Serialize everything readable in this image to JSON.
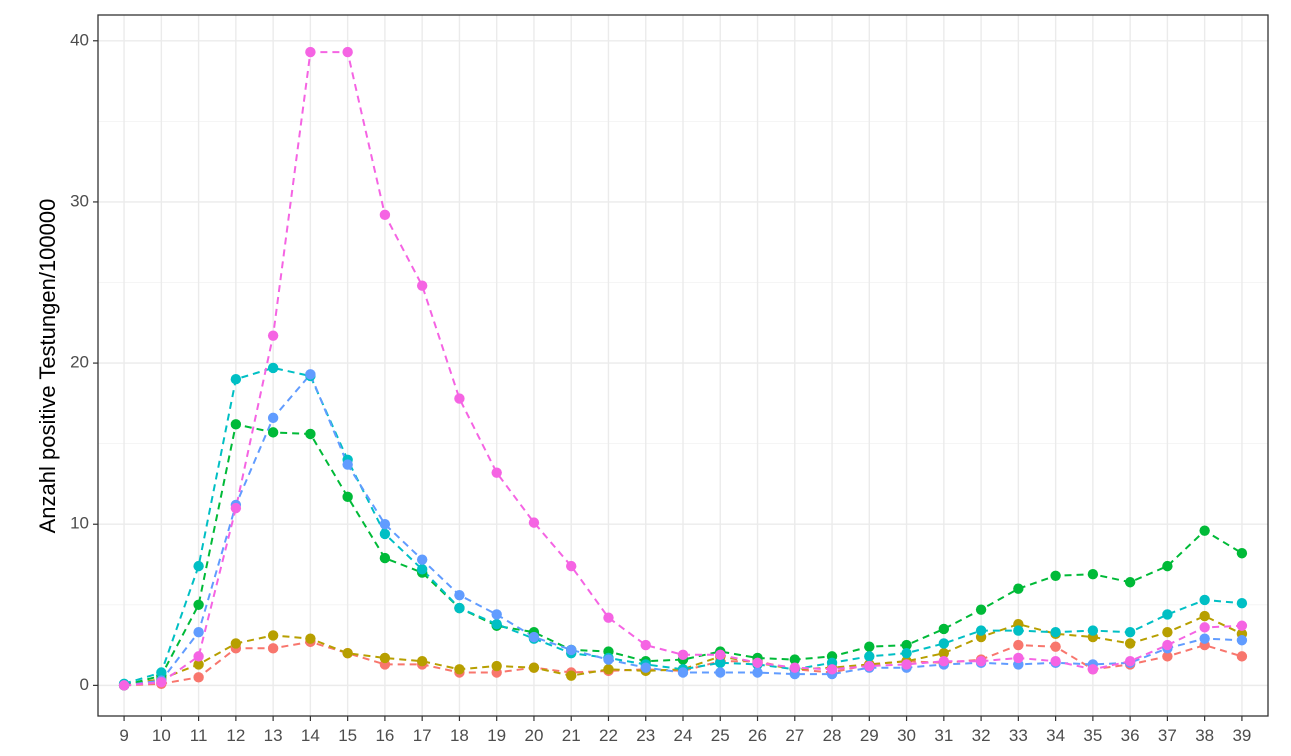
{
  "chart_data": {
    "type": "line",
    "title": "",
    "xlabel": "",
    "ylabel": "Anzahl positive Testungen/100000",
    "x": [
      9,
      10,
      11,
      12,
      13,
      14,
      15,
      16,
      17,
      18,
      19,
      20,
      21,
      22,
      23,
      24,
      25,
      26,
      27,
      28,
      29,
      30,
      31,
      32,
      33,
      34,
      35,
      36,
      37,
      38,
      39
    ],
    "xlim": [
      8.3,
      39.7
    ],
    "ylim": [
      -1.9,
      41.6
    ],
    "yticks": [
      0,
      10,
      20,
      30,
      40
    ],
    "grid": true,
    "legend": "none",
    "line_style": "dashed",
    "series": [
      {
        "color": "#F8766D",
        "values": [
          0.0,
          0.1,
          0.5,
          2.3,
          2.3,
          2.7,
          2.0,
          1.3,
          1.3,
          0.8,
          0.8,
          1.1,
          0.8,
          0.9,
          1.0,
          0.9,
          1.5,
          1.5,
          1.0,
          0.8,
          1.3,
          1.5,
          1.4,
          1.6,
          2.5,
          2.4,
          1.0,
          1.3,
          1.8,
          2.5,
          1.8
        ]
      },
      {
        "color": "#B79F00",
        "values": [
          0.0,
          0.4,
          1.3,
          2.6,
          3.1,
          2.9,
          2.0,
          1.7,
          1.5,
          1.0,
          1.2,
          1.1,
          0.6,
          1.0,
          0.9,
          1.0,
          1.8,
          1.4,
          1.0,
          1.1,
          1.3,
          1.5,
          2.0,
          3.0,
          3.8,
          3.2,
          3.0,
          2.6,
          3.3,
          4.3,
          3.2
        ]
      },
      {
        "color": "#00BA38",
        "values": [
          0.0,
          0.6,
          5.0,
          16.2,
          15.7,
          15.6,
          11.7,
          7.9,
          7.0,
          4.8,
          3.7,
          3.3,
          2.2,
          2.1,
          1.5,
          1.6,
          2.1,
          1.7,
          1.6,
          1.8,
          2.4,
          2.5,
          3.5,
          4.7,
          6.0,
          6.8,
          6.9,
          6.4,
          7.4,
          9.6,
          8.2
        ]
      },
      {
        "color": "#00BFC4",
        "values": [
          0.1,
          0.8,
          7.4,
          19.0,
          19.7,
          19.2,
          14.0,
          9.4,
          7.2,
          4.8,
          3.8,
          2.9,
          2.0,
          1.7,
          1.3,
          1.0,
          1.4,
          1.3,
          1.0,
          1.4,
          1.8,
          2.0,
          2.6,
          3.4,
          3.4,
          3.3,
          3.4,
          3.3,
          4.4,
          5.3,
          5.1
        ]
      },
      {
        "color": "#619CFF",
        "values": [
          0.0,
          0.3,
          3.3,
          11.2,
          16.6,
          19.3,
          13.7,
          10.0,
          7.8,
          5.6,
          4.4,
          3.0,
          2.2,
          1.6,
          1.1,
          0.8,
          0.8,
          0.8,
          0.7,
          0.7,
          1.1,
          1.1,
          1.3,
          1.4,
          1.3,
          1.4,
          1.3,
          1.4,
          2.3,
          2.9,
          2.8
        ]
      },
      {
        "color": "#F564E3",
        "values": [
          0.0,
          0.2,
          1.8,
          11.0,
          21.7,
          39.3,
          39.3,
          29.2,
          24.8,
          17.8,
          13.2,
          10.1,
          7.4,
          4.2,
          2.5,
          1.9,
          1.9,
          1.4,
          1.1,
          1.0,
          1.2,
          1.3,
          1.5,
          1.5,
          1.7,
          1.5,
          1.0,
          1.5,
          2.5,
          3.6,
          3.7
        ]
      }
    ]
  }
}
